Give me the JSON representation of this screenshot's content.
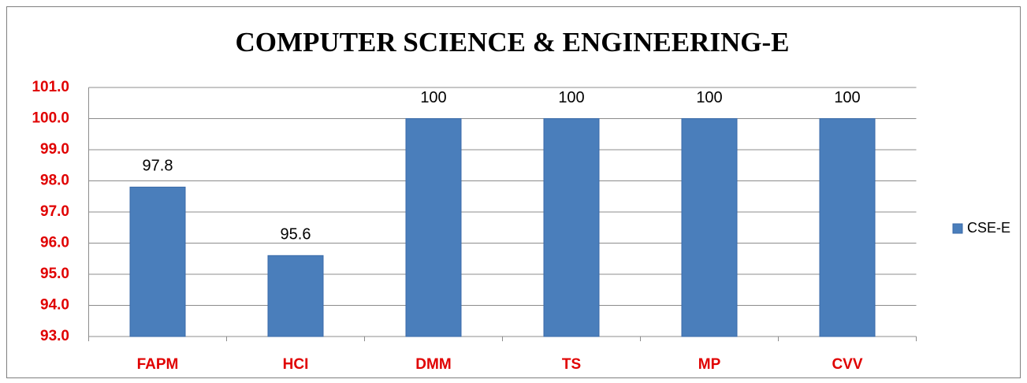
{
  "chart_data": {
    "type": "bar",
    "title": "COMPUTER SCIENCE & ENGINEERING-E",
    "categories": [
      "FAPM",
      "HCI",
      "DMM",
      "TS",
      "MP",
      "CVV"
    ],
    "series": [
      {
        "name": "CSE-E",
        "color": "#4a7ebb",
        "values": [
          97.8,
          95.6,
          100,
          100,
          100,
          100
        ]
      }
    ],
    "ylim": [
      93,
      101
    ],
    "yticks": [
      {
        "value": 93,
        "label": "93.0"
      },
      {
        "value": 94,
        "label": "94.0"
      },
      {
        "value": 95,
        "label": "95.0"
      },
      {
        "value": 96,
        "label": "96.0"
      },
      {
        "value": 97,
        "label": "97.0"
      },
      {
        "value": 98,
        "label": "98.0"
      },
      {
        "value": 99,
        "label": "99.0"
      },
      {
        "value": 100,
        "label": "100.0"
      },
      {
        "value": 101,
        "label": "101.0"
      }
    ],
    "grid": true,
    "legend": "right"
  }
}
